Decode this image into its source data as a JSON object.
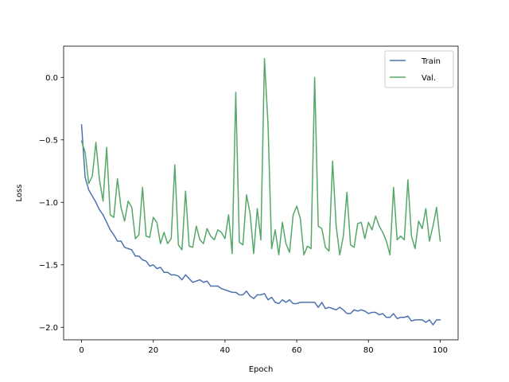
{
  "chart_data": {
    "type": "line",
    "title": "",
    "xlabel": "Epoch",
    "ylabel": "Loss",
    "xlim": [
      -5,
      105
    ],
    "ylim": [
      -2.1,
      0.25
    ],
    "xticks": [
      0,
      20,
      40,
      60,
      80,
      100
    ],
    "xtick_labels": [
      "0",
      "20",
      "40",
      "60",
      "80",
      "100"
    ],
    "yticks": [
      -2.0,
      -1.5,
      -1.0,
      -0.5,
      0.0
    ],
    "ytick_labels": [
      "−2.0",
      "−1.5",
      "−1.0",
      "−0.5",
      "0.0"
    ],
    "grid": false,
    "legend_position": "top-right",
    "x": [
      0,
      1,
      2,
      3,
      4,
      5,
      6,
      7,
      8,
      9,
      10,
      11,
      12,
      13,
      14,
      15,
      16,
      17,
      18,
      19,
      20,
      21,
      22,
      23,
      24,
      25,
      26,
      27,
      28,
      29,
      30,
      31,
      32,
      33,
      34,
      35,
      36,
      37,
      38,
      39,
      40,
      41,
      42,
      43,
      44,
      45,
      46,
      47,
      48,
      49,
      50,
      51,
      52,
      53,
      54,
      55,
      56,
      57,
      58,
      59,
      60,
      61,
      62,
      63,
      64,
      65,
      66,
      67,
      68,
      69,
      70,
      71,
      72,
      73,
      74,
      75,
      76,
      77,
      78,
      79,
      80,
      81,
      82,
      83,
      84,
      85,
      86,
      87,
      88,
      89,
      90,
      91,
      92,
      93,
      94,
      95,
      96,
      97,
      98,
      99,
      100
    ],
    "series": [
      {
        "name": "Train",
        "color": "#4c72b0",
        "values": [
          -0.38,
          -0.8,
          -0.9,
          -0.95,
          -1.0,
          -1.06,
          -1.1,
          -1.16,
          -1.22,
          -1.26,
          -1.31,
          -1.31,
          -1.36,
          -1.37,
          -1.38,
          -1.43,
          -1.43,
          -1.46,
          -1.47,
          -1.51,
          -1.5,
          -1.53,
          -1.52,
          -1.56,
          -1.56,
          -1.58,
          -1.58,
          -1.59,
          -1.62,
          -1.58,
          -1.61,
          -1.64,
          -1.63,
          -1.62,
          -1.64,
          -1.63,
          -1.67,
          -1.67,
          -1.67,
          -1.69,
          -1.7,
          -1.71,
          -1.72,
          -1.72,
          -1.74,
          -1.74,
          -1.71,
          -1.75,
          -1.77,
          -1.74,
          -1.74,
          -1.73,
          -1.78,
          -1.76,
          -1.8,
          -1.81,
          -1.78,
          -1.8,
          -1.78,
          -1.81,
          -1.81,
          -1.8,
          -1.8,
          -1.8,
          -1.8,
          -1.8,
          -1.84,
          -1.8,
          -1.85,
          -1.84,
          -1.85,
          -1.86,
          -1.84,
          -1.86,
          -1.89,
          -1.89,
          -1.86,
          -1.87,
          -1.86,
          -1.87,
          -1.89,
          -1.88,
          -1.88,
          -1.9,
          -1.89,
          -1.92,
          -1.92,
          -1.89,
          -1.93,
          -1.92,
          -1.92,
          -1.91,
          -1.95,
          -1.94,
          -1.94,
          -1.94,
          -1.96,
          -1.94,
          -1.98,
          -1.94,
          -1.94
        ]
      },
      {
        "name": "Val.",
        "color": "#55a868",
        "values": [
          -0.51,
          -0.6,
          -0.85,
          -0.79,
          -0.52,
          -0.82,
          -0.99,
          -0.56,
          -1.1,
          -1.12,
          -0.81,
          -1.04,
          -1.15,
          -0.99,
          -1.04,
          -1.29,
          -1.26,
          -0.88,
          -1.27,
          -1.28,
          -1.12,
          -1.16,
          -1.33,
          -1.24,
          -1.33,
          -1.29,
          -0.7,
          -1.34,
          -1.38,
          -0.91,
          -1.35,
          -1.36,
          -1.19,
          -1.3,
          -1.33,
          -1.21,
          -1.27,
          -1.3,
          -1.22,
          -1.24,
          -1.29,
          -1.1,
          -1.41,
          -0.12,
          -1.32,
          -1.34,
          -0.94,
          -1.09,
          -1.41,
          -1.05,
          -1.3,
          0.15,
          -0.38,
          -1.37,
          -1.22,
          -1.42,
          -1.16,
          -1.33,
          -1.4,
          -1.1,
          -1.03,
          -1.13,
          -1.42,
          -1.35,
          -1.37,
          0.0,
          -1.19,
          -1.21,
          -1.36,
          -1.39,
          -0.67,
          -1.19,
          -1.42,
          -1.27,
          -0.92,
          -1.34,
          -1.36,
          -1.17,
          -1.16,
          -1.29,
          -1.16,
          -1.22,
          -1.11,
          -1.19,
          -1.24,
          -1.31,
          -1.42,
          -0.88,
          -1.3,
          -1.27,
          -1.3,
          -0.82,
          -1.27,
          -1.37,
          -1.15,
          -1.21,
          -1.05,
          -1.31,
          -1.19,
          -1.04,
          -1.31
        ]
      }
    ]
  }
}
